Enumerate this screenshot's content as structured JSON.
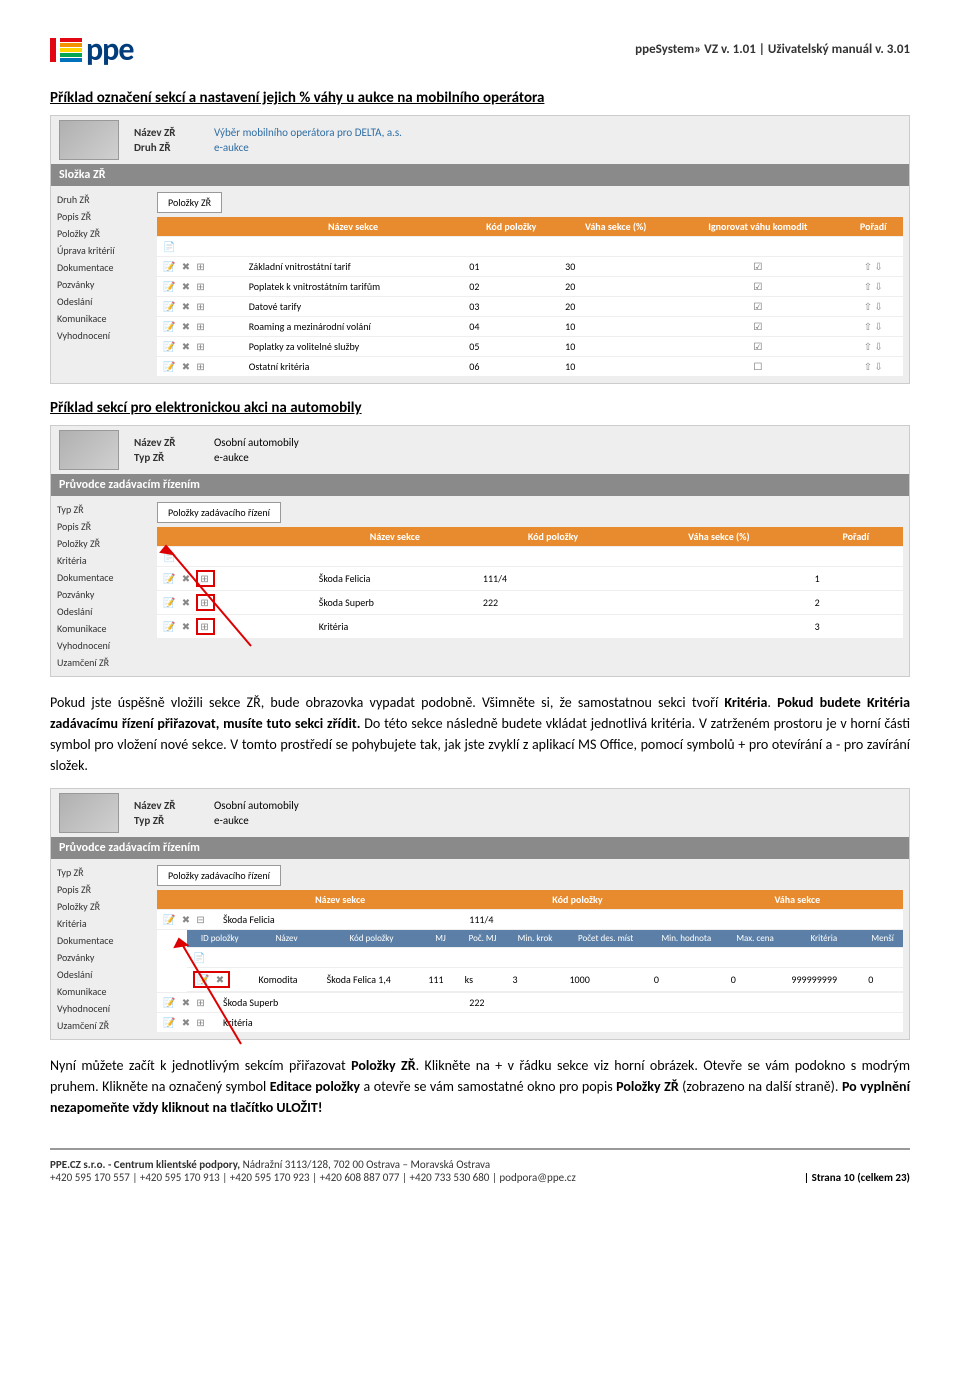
{
  "header": {
    "logo_text": "ppe",
    "stripe_colors": [
      "#e30613",
      "#f39200",
      "#ffd500",
      "#00a651",
      "#0072bc"
    ],
    "right_text": "ppeSystem» VZ v. 1.01 | Uživatelský manuál v. 3.01"
  },
  "title1": "Příklad označení sekcí a nastavení jejich % váhy u aukce na mobilního operátora",
  "shot1": {
    "nazev_lbl": "Název ZŘ",
    "nazev_val": "Výběr mobilního operátora pro DELTA, a.s.",
    "druh_lbl": "Druh ZŘ",
    "druh_val": "e-aukce",
    "section_bar": "Složka ZŘ",
    "nav": [
      "Druh ZŘ",
      "Popis ZŘ",
      "Položky ZŘ",
      "Úprava kritérií",
      "Dokumentace",
      "Pozvánky",
      "Odeslání",
      "Komunikace",
      "Vyhodnocení"
    ],
    "tab": "Položky ZŘ",
    "headers": [
      "",
      "Název sekce",
      "Kód položky",
      "Váha sekce (%)",
      "Ignorovat váhu komodit",
      "Pořadí"
    ],
    "rows": [
      {
        "name": "Základní vnitrostátní tarif",
        "code": "01",
        "weight": "30",
        "ignore": "☑"
      },
      {
        "name": "Poplatek k vnitrostátním tarifům",
        "code": "02",
        "weight": "20",
        "ignore": "☑"
      },
      {
        "name": "Datové tarify",
        "code": "03",
        "weight": "20",
        "ignore": "☑"
      },
      {
        "name": "Roaming a mezinárodní volání",
        "code": "04",
        "weight": "10",
        "ignore": "☑"
      },
      {
        "name": "Poplatky za volitelné služby",
        "code": "05",
        "weight": "10",
        "ignore": "☑"
      },
      {
        "name": "Ostatní kritéria",
        "code": "06",
        "weight": "10",
        "ignore": "☐"
      }
    ]
  },
  "title2": "Příklad sekcí pro elektronickou akci na automobily",
  "shot2": {
    "nazev_lbl": "Název ZŘ",
    "nazev_val": "Osobní automobily",
    "typ_lbl": "Typ ZŘ",
    "typ_val": "e-aukce",
    "section_bar": "Průvodce zadávacím řízením",
    "nav": [
      "Typ ZŘ",
      "Popis ZŘ",
      "Položky ZŘ",
      "Kritéria",
      "Dokumentace",
      "Pozvánky",
      "Odeslání",
      "Komunikace",
      "Vyhodnocení",
      "Uzamčení ZŘ"
    ],
    "tab": "Položky zadávacího řízení",
    "headers": [
      "",
      "Název sekce",
      "Kód položky",
      "Váha sekce (%)",
      "Pořadí"
    ],
    "rows": [
      {
        "name": "Škoda Felicia",
        "code": "111/4",
        "order": "1"
      },
      {
        "name": "Škoda Superb",
        "code": "222",
        "order": "2"
      },
      {
        "name": "Kritéria",
        "code": "",
        "order": "3"
      }
    ]
  },
  "para1_part1": "Pokud jste úspěšně vložili sekce ZŘ, bude obrazovka vypadat podobně. Všimněte si, že samostatnou sekci tvoří ",
  "para1_b1": "Kritéria",
  "para1_part2": ". ",
  "para1_b2": "Pokud budete Kritéria zadávacímu řízení přiřazovat, musíte tuto sekci zřídit.",
  "para1_part3": " Do této sekce následně budete vkládat jednotlivá kritéria. V zatrženém prostoru je v horní části symbol pro vložení nové sekce. V tomto prostředí se pohybujete tak, jak jste zvyklí z aplikací MS Office, pomocí symbolů   +   pro otevírání a   -   pro zavírání složek.",
  "shot3": {
    "nazev_lbl": "Název ZŘ",
    "nazev_val": "Osobní automobily",
    "typ_lbl": "Typ ZŘ",
    "typ_val": "e-aukce",
    "section_bar": "Průvodce zadávacím řízením",
    "nav": [
      "Typ ZŘ",
      "Popis ZŘ",
      "Položky ZŘ",
      "Kritéria",
      "Dokumentace",
      "Pozvánky",
      "Odeslání",
      "Komunikace",
      "Vyhodnocení",
      "Uzamčení ZŘ"
    ],
    "tab": "Položky zadávacího řízení",
    "orange_headers": [
      "",
      "Název sekce",
      "Kód položky",
      "Váha sekce"
    ],
    "row_felicia_name": "Škoda Felicia",
    "row_felicia_code": "111/4",
    "blue_headers": [
      "ID položky",
      "Název",
      "Kód položky",
      "MJ",
      "Poč. MJ",
      "Min. krok",
      "Počet des. míst",
      "Min. hodnota",
      "Max. cena",
      "Kritéria",
      "Menší"
    ],
    "item_row": {
      "id": "Komodita",
      "name": "Škoda Felica 1,4",
      "code": "111",
      "mj": "ks",
      "poc": "3",
      "mink": "1000",
      "dec": "0",
      "minh": "0",
      "max": "999999999",
      "krit": "0"
    },
    "row_superb": "Škoda Superb",
    "row_superb_code": "222",
    "row_kriteria": "Kritéria"
  },
  "para2_part1": "Nyní můžete začít k jednotlivým sekcím přiřazovat ",
  "para2_b1": "Položky ZŘ",
  "para2_part2": ". Klikněte na  + v řádku sekce viz horní obrázek. Otevře se vám podokno s modrým pruhem. Klikněte na označený symbol ",
  "para2_b2": "Editace položky",
  "para2_part3": " a otevře se vám samostatné okno pro popis ",
  "para2_b3": "Položky ZŘ",
  "para2_part4": " (zobrazeno na další straně). ",
  "para2_b4": "Po vyplnění nezapomeňte vždy kliknout na tlačítko ULOŽIT!",
  "footer": {
    "line1_b": "PPE.CZ s.r.o. - Centrum klientské podpory, ",
    "line1": "Nádražní 3113/128, 702 00 Ostrava – Moravská Ostrava",
    "line2": "+420 595 170 557 | +420 595 170 913 | +420 595 170 923 | +420 608 887 077 | +420 733 530 680 | podpora@ppe.cz",
    "page": "| Strana 10 (celkem 23)"
  }
}
